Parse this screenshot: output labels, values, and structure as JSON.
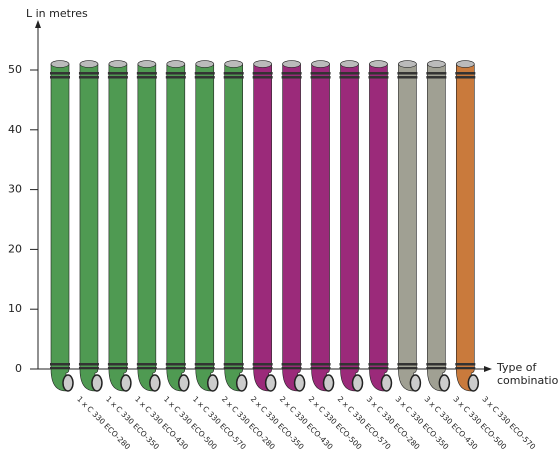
{
  "chart_data": {
    "type": "bar",
    "y_label": "L in metres",
    "x_label": [
      "Type of",
      "combination"
    ],
    "categories": [
      "1 x C 330 ECO-280",
      "1 x C 330 ECO-350",
      "1 x C 330 ECO-430",
      "1 x C 330 ECO-500",
      "1 x C 330 ECO-570",
      "2 x C 330 ECO-280",
      "2 x C 330 ECO-350",
      "2 x C 330 ECO-430",
      "2 x C 330 ECO-500",
      "2 x C 330 ECO-570",
      "3 x C 330 ECO-280",
      "3 x C 330 ECO-350",
      "3 x C 330 ECO-430",
      "3 x C 330 ECO-500",
      "3 x C 330 ECO-570"
    ],
    "values": [
      51,
      51,
      51,
      51,
      51,
      51,
      51,
      51,
      51,
      51,
      51,
      51,
      51,
      51,
      51
    ],
    "colors": [
      "#4f9a52",
      "#4f9a52",
      "#4f9a52",
      "#4f9a52",
      "#4f9a52",
      "#4f9a52",
      "#4f9a52",
      "#9b2a7a",
      "#9b2a7a",
      "#9b2a7a",
      "#9b2a7a",
      "#9b2a7a",
      "#a0a093",
      "#a0a093",
      "#c97a3c"
    ],
    "ylim": [
      0,
      57
    ],
    "yticks": [
      0,
      10,
      20,
      30,
      40,
      50
    ]
  }
}
